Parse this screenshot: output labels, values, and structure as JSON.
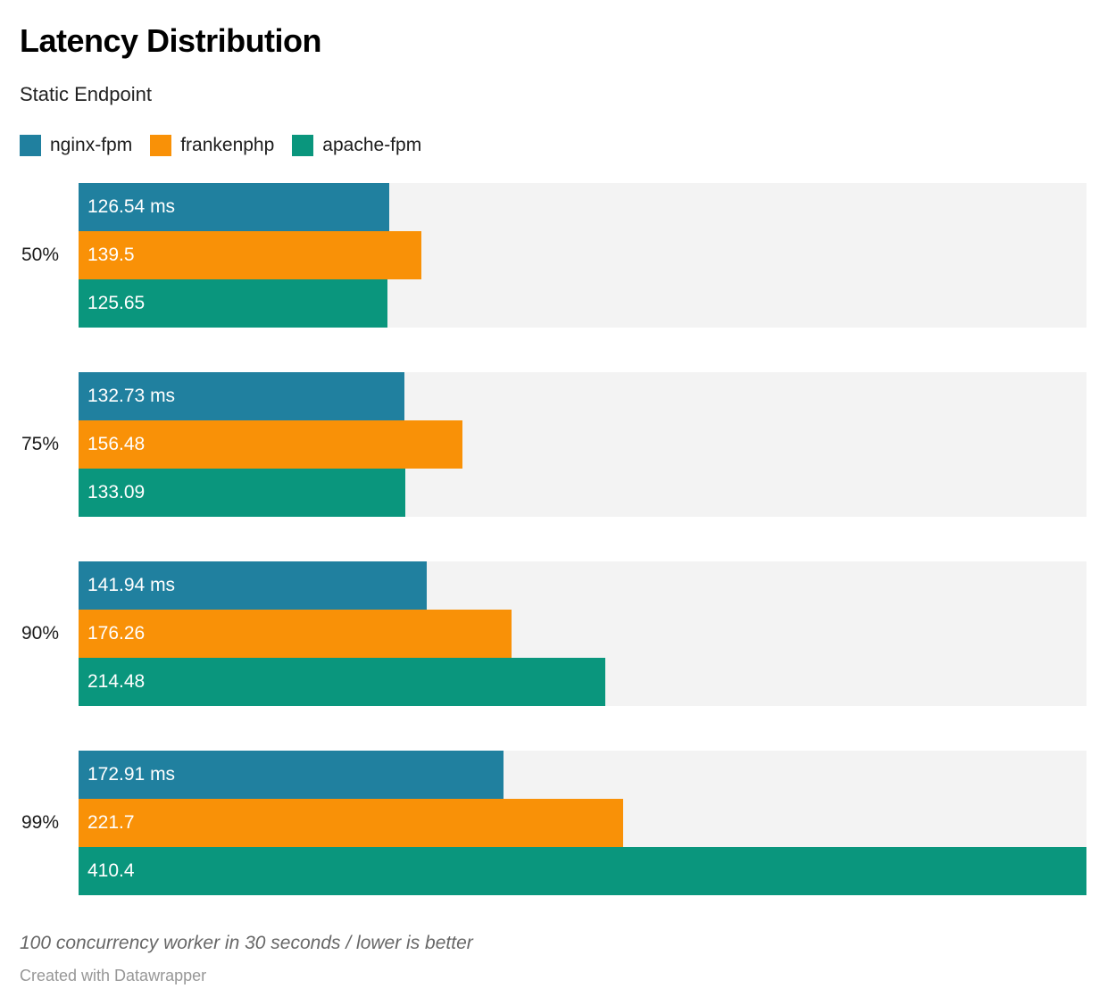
{
  "chart_data": {
    "type": "bar",
    "orientation": "horizontal",
    "title": "Latency Distribution",
    "subtitle": "Static Endpoint",
    "note": "100 concurrency worker in 30 seconds / lower is better",
    "categories": [
      "50%",
      "75%",
      "90%",
      "99%"
    ],
    "series": [
      {
        "name": "nginx-fpm",
        "color": "#20809f",
        "values": [
          126.54,
          132.73,
          141.94,
          172.91
        ],
        "labels": [
          "126.54 ms",
          "132.73 ms",
          "141.94 ms",
          "172.91 ms"
        ]
      },
      {
        "name": "frankenphp",
        "color": "#f99107",
        "values": [
          139.5,
          156.48,
          176.26,
          221.7
        ],
        "labels": [
          "139.5",
          "156.48",
          "176.26",
          "221.7"
        ]
      },
      {
        "name": "apache-fpm",
        "color": "#0a967d",
        "values": [
          125.65,
          133.09,
          214.48,
          410.4
        ],
        "labels": [
          "125.65",
          "133.09",
          "214.48",
          "410.4"
        ]
      }
    ],
    "unit": "ms",
    "xlim": [
      0,
      410.4
    ],
    "grid": false,
    "legend_position": "top",
    "track_color": "#f3f3f3"
  },
  "footer": {
    "attribution": "Created with Datawrapper"
  }
}
